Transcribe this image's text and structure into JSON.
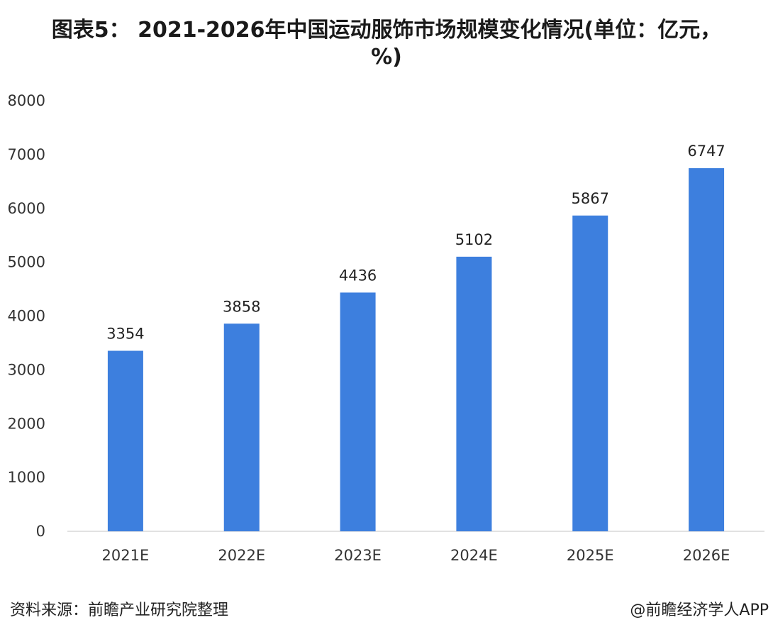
{
  "title": "图表5： 2021-2026年中国运动服饰市场规模变化情况(单位：亿元，%)",
  "source": "资料来源：前瞻产业研究院整理",
  "credit": "@前瞻经济学人APP",
  "colors": {
    "bar": "#3d7fde",
    "axis": "#d9d9d9"
  },
  "chart_data": {
    "type": "bar",
    "title": "图表5： 2021-2026年中国运动服饰市场规模变化情况(单位：亿元，%)",
    "categories": [
      "2021E",
      "2022E",
      "2023E",
      "2024E",
      "2025E",
      "2026E"
    ],
    "values": [
      3354,
      3858,
      4436,
      5102,
      5867,
      6747
    ],
    "ylim": [
      0,
      8000
    ],
    "yticks": [
      0,
      1000,
      2000,
      3000,
      4000,
      5000,
      6000,
      7000,
      8000
    ],
    "xlabel": "",
    "ylabel": "",
    "grid": false,
    "legend": "none"
  }
}
